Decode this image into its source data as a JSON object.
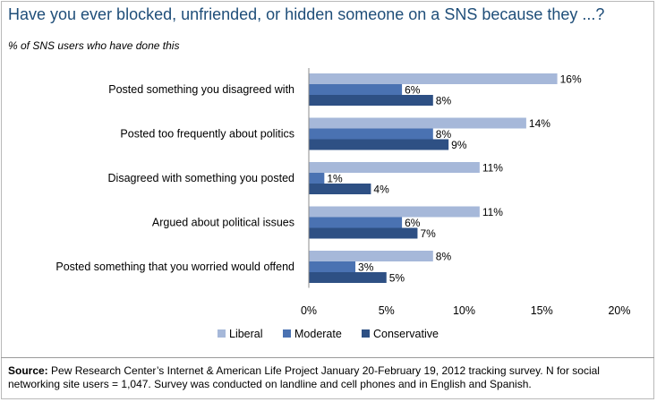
{
  "title": "Have you ever blocked, unfriended, or hidden someone on a SNS because they ...?",
  "subtitle": "% of SNS users who have done this",
  "source": {
    "label": "Source:",
    "text": " Pew Research Center’s Internet & American Life Project January 20-February 19, 2012 tracking survey. N for social networking site users = 1,047. Survey was conducted on landline and cell phones and in English and Spanish."
  },
  "chart_data": {
    "type": "bar",
    "orientation": "horizontal",
    "title": "Have you ever blocked, unfriended, or hidden someone on a SNS because they ...?",
    "subtitle": "% of SNS users who have done this",
    "categories": [
      "Posted something you disagreed with",
      "Posted too frequently about politics",
      "Disagreed with something you posted",
      "Argued about political issues",
      "Posted something that you worried would offend"
    ],
    "series": [
      {
        "name": "Liberal",
        "color": "#a6b8d9",
        "values": [
          16,
          14,
          11,
          11,
          8
        ]
      },
      {
        "name": "Moderate",
        "color": "#4a72b2",
        "values": [
          6,
          8,
          1,
          6,
          3
        ]
      },
      {
        "name": "Conservative",
        "color": "#2e5084",
        "values": [
          8,
          9,
          4,
          7,
          5
        ]
      }
    ],
    "xlim": [
      0,
      20
    ],
    "ticks": [
      0,
      5,
      10,
      15,
      20
    ],
    "tick_labels": [
      "0%",
      "5%",
      "10%",
      "15%",
      "20%"
    ],
    "value_suffix": "%",
    "legend": "bottom",
    "grid": false
  }
}
